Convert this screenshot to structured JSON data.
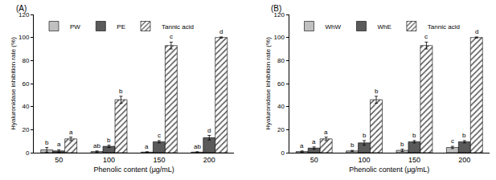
{
  "chart_data": [
    {
      "type": "bar",
      "title": "(A)",
      "x_label": "Phenolic content (μg/mL)",
      "y_label": "Hyaluronidase inhibition rate (%)",
      "categories": [
        "50",
        "100",
        "150",
        "200"
      ],
      "ylim": [
        0,
        120
      ],
      "yticks": [
        0,
        20,
        40,
        60,
        80,
        100,
        120
      ],
      "grid": false,
      "legend": "upper left",
      "series": [
        {
          "name": "PW",
          "color": "#c0c0c0",
          "marker": "solid",
          "values": [
            2.5,
            1,
            0.5,
            0.5
          ],
          "errors": [
            2,
            0.5,
            0.3,
            0.3
          ],
          "letters": [
            "b",
            "ab",
            "a",
            "ab"
          ]
        },
        {
          "name": "PE",
          "color": "#5a5a5a",
          "marker": "solid",
          "values": [
            1.5,
            5.5,
            9.5,
            13
          ],
          "errors": [
            1,
            1,
            1,
            2
          ],
          "letters": [
            "a",
            "b",
            "c",
            "d"
          ]
        },
        {
          "name": "Tannic acid",
          "color": "#555555",
          "marker": "hatch",
          "values": [
            12,
            46,
            93,
            100
          ],
          "errors": [
            1.5,
            3,
            3,
            0.5
          ],
          "letters": [
            "a",
            "b",
            "c",
            "d"
          ]
        }
      ]
    },
    {
      "type": "bar",
      "title": "(B)",
      "x_label": "Phenolic content (μg/mL)",
      "y_label": "Hyaluronidase inhibition rate (%)",
      "categories": [
        "50",
        "100",
        "150",
        "200"
      ],
      "ylim": [
        0,
        120
      ],
      "yticks": [
        0,
        20,
        40,
        60,
        80,
        100,
        120
      ],
      "grid": false,
      "legend": "upper left",
      "series": [
        {
          "name": "WhW",
          "color": "#c0c0c0",
          "marker": "solid",
          "values": [
            1,
            1.5,
            2,
            4.5
          ],
          "errors": [
            0.5,
            0.5,
            1,
            1
          ],
          "letters": [
            "a",
            "b",
            "b",
            "c"
          ]
        },
        {
          "name": "WhE",
          "color": "#5a5a5a",
          "marker": "solid",
          "values": [
            4,
            8.5,
            9.5,
            9.5
          ],
          "errors": [
            1,
            2,
            1,
            1
          ],
          "letters": [
            "a",
            "b",
            "b",
            "b"
          ]
        },
        {
          "name": "Tannic acid",
          "color": "#555555",
          "marker": "hatch",
          "values": [
            12,
            46,
            93,
            100
          ],
          "errors": [
            1.5,
            3,
            3,
            0.5
          ],
          "letters": [
            "a",
            "b",
            "c",
            "d"
          ]
        }
      ]
    }
  ]
}
